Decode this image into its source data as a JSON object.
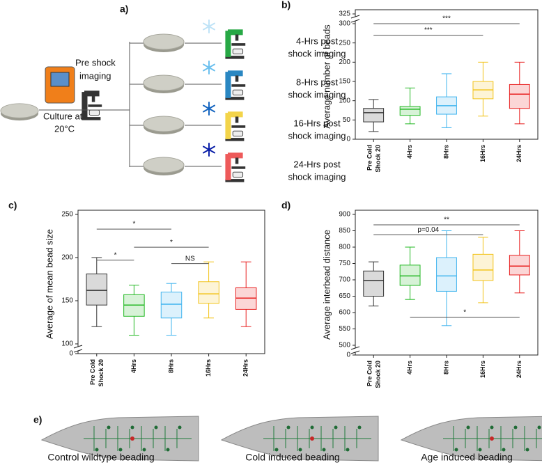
{
  "diagram": {
    "label": "a)",
    "pre_shock": [
      "Pre shock",
      "imaging"
    ],
    "culture": [
      "Culture at",
      "20°C"
    ],
    "branches": [
      [
        "4-Hrs post",
        "shock imaging"
      ],
      [
        "8-Hrs post",
        "shock imaging"
      ],
      [
        "16-Hrs post",
        "shock imaging"
      ],
      [
        "24-Hrs post",
        "shock imaging"
      ]
    ]
  },
  "chart_data": [
    {
      "type": "box",
      "panel_label": "b)",
      "y_label": "Average number of beads",
      "categories": [
        [
          "Pre Cold",
          "Shock 20"
        ],
        "4Hrs",
        "8Hrs",
        "16Hrs",
        "24Hrs"
      ],
      "colors": [
        "#333333",
        "#22b822",
        "#3fb4ee",
        "#f2c319",
        "#e81e1e"
      ],
      "boxes": [
        {
          "whislo": 20,
          "q1": 45,
          "med": 69,
          "q3": 80,
          "whishi": 103
        },
        {
          "whislo": 40,
          "q1": 62,
          "med": 78,
          "q3": 85,
          "whishi": 133
        },
        {
          "whislo": 30,
          "q1": 65,
          "med": 87,
          "q3": 110,
          "whishi": 170
        },
        {
          "whislo": 60,
          "q1": 105,
          "med": 128,
          "q3": 150,
          "whishi": 200
        },
        {
          "whislo": 40,
          "q1": 80,
          "med": 117,
          "q3": 142,
          "whishi": 200
        }
      ],
      "ylim": [
        0,
        325
      ],
      "ybreak": [
        300,
        325
      ],
      "yticks": [
        0,
        50,
        100,
        150,
        200,
        250,
        300,
        325
      ],
      "annotations": [
        {
          "label": "***",
          "y": 300
        },
        {
          "label": "***",
          "y": 270
        }
      ]
    },
    {
      "type": "box",
      "panel_label": "c)",
      "y_label": "Average of mean bead size",
      "categories": [
        [
          "Pre Cold",
          "Shock 20"
        ],
        "4Hrs",
        "8Hrs",
        "16Hrs",
        "24Hrs"
      ],
      "colors": [
        "#333333",
        "#22b822",
        "#3fb4ee",
        "#f2c319",
        "#e81e1e"
      ],
      "boxes": [
        {
          "whislo": 120,
          "q1": 145,
          "med": 162,
          "q3": 181,
          "whishi": 200
        },
        {
          "whislo": 110,
          "q1": 132,
          "med": 145,
          "q3": 157,
          "whishi": 168
        },
        {
          "whislo": 110,
          "q1": 130,
          "med": 146,
          "q3": 160,
          "whishi": 170
        },
        {
          "whislo": 130,
          "q1": 147,
          "med": 158,
          "q3": 172,
          "whishi": 195
        },
        {
          "whislo": 120,
          "q1": 140,
          "med": 153,
          "q3": 165,
          "whishi": 195
        }
      ],
      "ylim": [
        0,
        250
      ],
      "ybreak": [
        0,
        100
      ],
      "yticks": [
        0,
        100,
        150,
        200,
        250
      ],
      "annotations": [
        {
          "label": "*",
          "y": 197
        },
        {
          "label": "*",
          "y": 233
        },
        {
          "label": "*",
          "y": 212
        },
        {
          "label": "NS",
          "y": 193
        }
      ]
    },
    {
      "type": "box",
      "panel_label": "d)",
      "y_label": "Average interbead distance",
      "categories": [
        [
          "Pre Cold",
          "Shock 20"
        ],
        "4Hrs",
        "8Hrs",
        "16Hrs",
        "24Hrs"
      ],
      "colors": [
        "#333333",
        "#22b822",
        "#3fb4ee",
        "#f2c319",
        "#e81e1e"
      ],
      "boxes": [
        {
          "whislo": 620,
          "q1": 650,
          "med": 698,
          "q3": 727,
          "whishi": 755
        },
        {
          "whislo": 640,
          "q1": 683,
          "med": 712,
          "q3": 745,
          "whishi": 800
        },
        {
          "whislo": 560,
          "q1": 665,
          "med": 712,
          "q3": 768,
          "whishi": 850
        },
        {
          "whislo": 630,
          "q1": 698,
          "med": 730,
          "q3": 778,
          "whishi": 830
        },
        {
          "whislo": 660,
          "q1": 715,
          "med": 742,
          "q3": 775,
          "whishi": 850
        }
      ],
      "ylim": [
        0,
        900
      ],
      "ybreak": [
        0,
        500
      ],
      "yticks": [
        0,
        500,
        550,
        600,
        650,
        700,
        750,
        800,
        850,
        900
      ],
      "annotations": [
        {
          "label": "**",
          "y": 868
        },
        {
          "label": "p=0.04",
          "y": 838
        },
        {
          "label": "*",
          "y": 585
        }
      ]
    }
  ],
  "illustrations": {
    "label": "e)",
    "captions": [
      "Control wildtype beading",
      "Cold induced beading",
      "Age induced beading"
    ]
  }
}
